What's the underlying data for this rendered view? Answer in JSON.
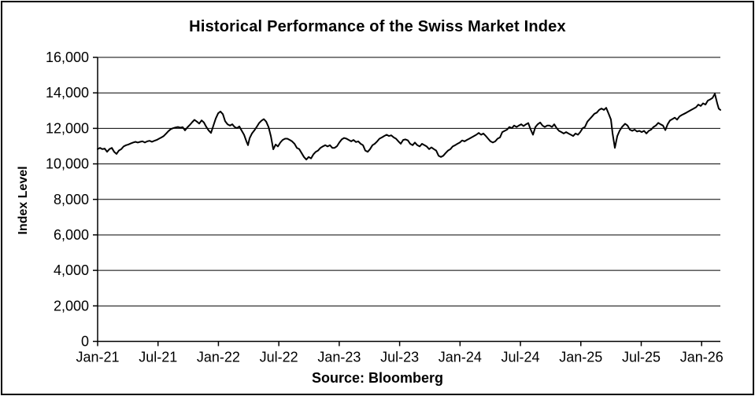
{
  "title": "Historical Performance of the Swiss Market Index",
  "source": "Source: Bloomberg",
  "chart_data": {
    "type": "line",
    "title": "Historical Performance of the Swiss Market Index",
    "xlabel": "",
    "ylabel": "Index Level",
    "source": "Source: Bloomberg",
    "ylim": [
      0,
      16000
    ],
    "y_ticks": [
      0,
      2000,
      4000,
      6000,
      8000,
      10000,
      12000,
      14000,
      16000
    ],
    "y_tick_labels": [
      "0",
      "2,000",
      "4,000",
      "6,000",
      "8,000",
      "10,000",
      "12,000",
      "14,000",
      "16,000"
    ],
    "x_tick_months": [
      0,
      6,
      12,
      18,
      24,
      30,
      36,
      42,
      48,
      54,
      60
    ],
    "x_tick_labels": [
      "Jan-21",
      "Jul-21",
      "Jan-22",
      "Jul-22",
      "Jan-23",
      "Jul-23",
      "Jan-24",
      "Jul-24",
      "Jan-25",
      "Jul-25",
      "Jan-26"
    ],
    "x_range_months": [
      0,
      61.86
    ],
    "grid": "horizontal",
    "legend": "none",
    "line_color": "#000000",
    "series": [
      {
        "name": "Swiss Market Index",
        "points": [
          [
            0,
            10830
          ],
          [
            0.23,
            10900
          ],
          [
            0.47,
            10830
          ],
          [
            0.7,
            10860
          ],
          [
            0.94,
            10680
          ],
          [
            1.17,
            10830
          ],
          [
            1.41,
            10900
          ],
          [
            1.64,
            10680
          ],
          [
            1.88,
            10560
          ],
          [
            2.11,
            10750
          ],
          [
            2.35,
            10830
          ],
          [
            2.58,
            10980
          ],
          [
            2.82,
            11050
          ],
          [
            3.05,
            11090
          ],
          [
            3.29,
            11150
          ],
          [
            3.52,
            11200
          ],
          [
            3.76,
            11240
          ],
          [
            3.99,
            11200
          ],
          [
            4.22,
            11240
          ],
          [
            4.46,
            11270
          ],
          [
            4.69,
            11200
          ],
          [
            4.93,
            11270
          ],
          [
            5.16,
            11300
          ],
          [
            5.4,
            11240
          ],
          [
            5.63,
            11300
          ],
          [
            5.87,
            11350
          ],
          [
            6.1,
            11420
          ],
          [
            6.34,
            11490
          ],
          [
            6.57,
            11570
          ],
          [
            6.81,
            11710
          ],
          [
            7.04,
            11850
          ],
          [
            7.27,
            11960
          ],
          [
            7.51,
            12010
          ],
          [
            7.74,
            12050
          ],
          [
            7.98,
            12080
          ],
          [
            8.21,
            12040
          ],
          [
            8.45,
            12070
          ],
          [
            8.68,
            11890
          ],
          [
            8.92,
            12060
          ],
          [
            9.15,
            12190
          ],
          [
            9.39,
            12350
          ],
          [
            9.62,
            12480
          ],
          [
            9.86,
            12380
          ],
          [
            10.09,
            12270
          ],
          [
            10.33,
            12450
          ],
          [
            10.56,
            12330
          ],
          [
            10.8,
            12080
          ],
          [
            11.03,
            11890
          ],
          [
            11.26,
            11740
          ],
          [
            11.5,
            12150
          ],
          [
            11.73,
            12550
          ],
          [
            11.97,
            12850
          ],
          [
            12.2,
            12950
          ],
          [
            12.44,
            12800
          ],
          [
            12.67,
            12400
          ],
          [
            12.91,
            12230
          ],
          [
            13.14,
            12160
          ],
          [
            13.38,
            12230
          ],
          [
            13.61,
            12080
          ],
          [
            13.85,
            12010
          ],
          [
            14.08,
            12110
          ],
          [
            14.32,
            11860
          ],
          [
            14.55,
            11640
          ],
          [
            14.78,
            11270
          ],
          [
            14.94,
            11050
          ],
          [
            15.1,
            11450
          ],
          [
            15.33,
            11710
          ],
          [
            15.57,
            11890
          ],
          [
            15.8,
            12080
          ],
          [
            16.04,
            12300
          ],
          [
            16.27,
            12430
          ],
          [
            16.51,
            12520
          ],
          [
            16.74,
            12380
          ],
          [
            16.98,
            12080
          ],
          [
            17.21,
            11550
          ],
          [
            17.45,
            10820
          ],
          [
            17.68,
            11090
          ],
          [
            17.91,
            10980
          ],
          [
            18.15,
            11200
          ],
          [
            18.38,
            11350
          ],
          [
            18.62,
            11420
          ],
          [
            18.85,
            11420
          ],
          [
            19.09,
            11350
          ],
          [
            19.32,
            11270
          ],
          [
            19.56,
            11130
          ],
          [
            19.79,
            10900
          ],
          [
            20.03,
            10830
          ],
          [
            20.26,
            10610
          ],
          [
            20.5,
            10390
          ],
          [
            20.73,
            10240
          ],
          [
            20.96,
            10390
          ],
          [
            21.2,
            10310
          ],
          [
            21.43,
            10530
          ],
          [
            21.67,
            10680
          ],
          [
            21.9,
            10750
          ],
          [
            22.14,
            10900
          ],
          [
            22.37,
            10980
          ],
          [
            22.61,
            11050
          ],
          [
            22.84,
            10980
          ],
          [
            23.08,
            11050
          ],
          [
            23.31,
            10900
          ],
          [
            23.54,
            10900
          ],
          [
            23.78,
            11000
          ],
          [
            24.01,
            11200
          ],
          [
            24.25,
            11380
          ],
          [
            24.48,
            11460
          ],
          [
            24.72,
            11420
          ],
          [
            24.95,
            11350
          ],
          [
            25.19,
            11270
          ],
          [
            25.42,
            11350
          ],
          [
            25.66,
            11230
          ],
          [
            25.89,
            11270
          ],
          [
            26.13,
            11130
          ],
          [
            26.36,
            11050
          ],
          [
            26.59,
            10750
          ],
          [
            26.83,
            10680
          ],
          [
            27.06,
            10830
          ],
          [
            27.3,
            11050
          ],
          [
            27.53,
            11130
          ],
          [
            27.77,
            11270
          ],
          [
            28,
            11420
          ],
          [
            28.24,
            11490
          ],
          [
            28.47,
            11570
          ],
          [
            28.71,
            11640
          ],
          [
            28.94,
            11570
          ],
          [
            29.17,
            11610
          ],
          [
            29.41,
            11490
          ],
          [
            29.64,
            11420
          ],
          [
            29.88,
            11270
          ],
          [
            30.11,
            11130
          ],
          [
            30.35,
            11350
          ],
          [
            30.58,
            11380
          ],
          [
            30.82,
            11320
          ],
          [
            31.05,
            11130
          ],
          [
            31.29,
            11050
          ],
          [
            31.52,
            11200
          ],
          [
            31.76,
            11050
          ],
          [
            31.99,
            10980
          ],
          [
            32.22,
            11130
          ],
          [
            32.46,
            11050
          ],
          [
            32.69,
            10980
          ],
          [
            32.93,
            10830
          ],
          [
            33.16,
            10930
          ],
          [
            33.4,
            10830
          ],
          [
            33.63,
            10750
          ],
          [
            33.87,
            10460
          ],
          [
            34.1,
            10390
          ],
          [
            34.34,
            10460
          ],
          [
            34.57,
            10610
          ],
          [
            34.81,
            10750
          ],
          [
            35.04,
            10830
          ],
          [
            35.27,
            10980
          ],
          [
            35.51,
            11050
          ],
          [
            35.74,
            11130
          ],
          [
            35.98,
            11200
          ],
          [
            36.21,
            11320
          ],
          [
            36.45,
            11270
          ],
          [
            36.68,
            11350
          ],
          [
            36.92,
            11420
          ],
          [
            37.15,
            11490
          ],
          [
            37.39,
            11570
          ],
          [
            37.62,
            11640
          ],
          [
            37.86,
            11740
          ],
          [
            38.09,
            11640
          ],
          [
            38.32,
            11710
          ],
          [
            38.56,
            11570
          ],
          [
            38.79,
            11420
          ],
          [
            39.03,
            11270
          ],
          [
            39.26,
            11200
          ],
          [
            39.5,
            11270
          ],
          [
            39.73,
            11420
          ],
          [
            39.97,
            11490
          ],
          [
            40.2,
            11790
          ],
          [
            40.44,
            11860
          ],
          [
            40.67,
            11930
          ],
          [
            40.91,
            12080
          ],
          [
            41.14,
            12010
          ],
          [
            41.37,
            12160
          ],
          [
            41.61,
            12080
          ],
          [
            41.84,
            12160
          ],
          [
            42.08,
            12230
          ],
          [
            42.31,
            12130
          ],
          [
            42.55,
            12230
          ],
          [
            42.78,
            12300
          ],
          [
            43.02,
            11930
          ],
          [
            43.25,
            11640
          ],
          [
            43.49,
            12080
          ],
          [
            43.72,
            12230
          ],
          [
            43.96,
            12330
          ],
          [
            44.19,
            12160
          ],
          [
            44.42,
            12080
          ],
          [
            44.66,
            12160
          ],
          [
            44.89,
            12160
          ],
          [
            45.13,
            12080
          ],
          [
            45.36,
            12230
          ],
          [
            45.6,
            12010
          ],
          [
            45.83,
            11860
          ],
          [
            46.07,
            11790
          ],
          [
            46.3,
            11710
          ],
          [
            46.54,
            11790
          ],
          [
            46.77,
            11710
          ],
          [
            47.01,
            11640
          ],
          [
            47.24,
            11570
          ],
          [
            47.47,
            11710
          ],
          [
            47.71,
            11640
          ],
          [
            47.94,
            11790
          ],
          [
            48.18,
            12010
          ],
          [
            48.41,
            12080
          ],
          [
            48.65,
            12380
          ],
          [
            48.88,
            12520
          ],
          [
            49.12,
            12670
          ],
          [
            49.35,
            12820
          ],
          [
            49.59,
            12890
          ],
          [
            49.82,
            13040
          ],
          [
            50.05,
            13120
          ],
          [
            50.29,
            13040
          ],
          [
            50.52,
            13160
          ],
          [
            50.76,
            12820
          ],
          [
            50.99,
            12500
          ],
          [
            51.15,
            11710
          ],
          [
            51.38,
            10900
          ],
          [
            51.62,
            11570
          ],
          [
            51.85,
            11860
          ],
          [
            52.09,
            12080
          ],
          [
            52.4,
            12260
          ],
          [
            52.64,
            12160
          ],
          [
            52.87,
            11930
          ],
          [
            53.11,
            11860
          ],
          [
            53.34,
            11930
          ],
          [
            53.58,
            11820
          ],
          [
            53.81,
            11860
          ],
          [
            54.05,
            11790
          ],
          [
            54.28,
            11860
          ],
          [
            54.51,
            11710
          ],
          [
            54.75,
            11860
          ],
          [
            54.98,
            11930
          ],
          [
            55.22,
            12080
          ],
          [
            55.45,
            12160
          ],
          [
            55.69,
            12310
          ],
          [
            55.92,
            12230
          ],
          [
            56.16,
            12160
          ],
          [
            56.39,
            11900
          ],
          [
            56.62,
            12230
          ],
          [
            56.86,
            12450
          ],
          [
            57.09,
            12520
          ],
          [
            57.33,
            12600
          ],
          [
            57.56,
            12490
          ],
          [
            57.8,
            12670
          ],
          [
            58.03,
            12750
          ],
          [
            58.27,
            12820
          ],
          [
            58.5,
            12890
          ],
          [
            58.74,
            12970
          ],
          [
            58.97,
            13040
          ],
          [
            59.2,
            13110
          ],
          [
            59.44,
            13190
          ],
          [
            59.67,
            13340
          ],
          [
            59.91,
            13260
          ],
          [
            60.14,
            13410
          ],
          [
            60.38,
            13340
          ],
          [
            60.61,
            13560
          ],
          [
            60.85,
            13630
          ],
          [
            61.08,
            13710
          ],
          [
            61.31,
            13950
          ],
          [
            61.55,
            13410
          ],
          [
            61.7,
            13110
          ],
          [
            61.86,
            13040
          ]
        ]
      }
    ]
  }
}
